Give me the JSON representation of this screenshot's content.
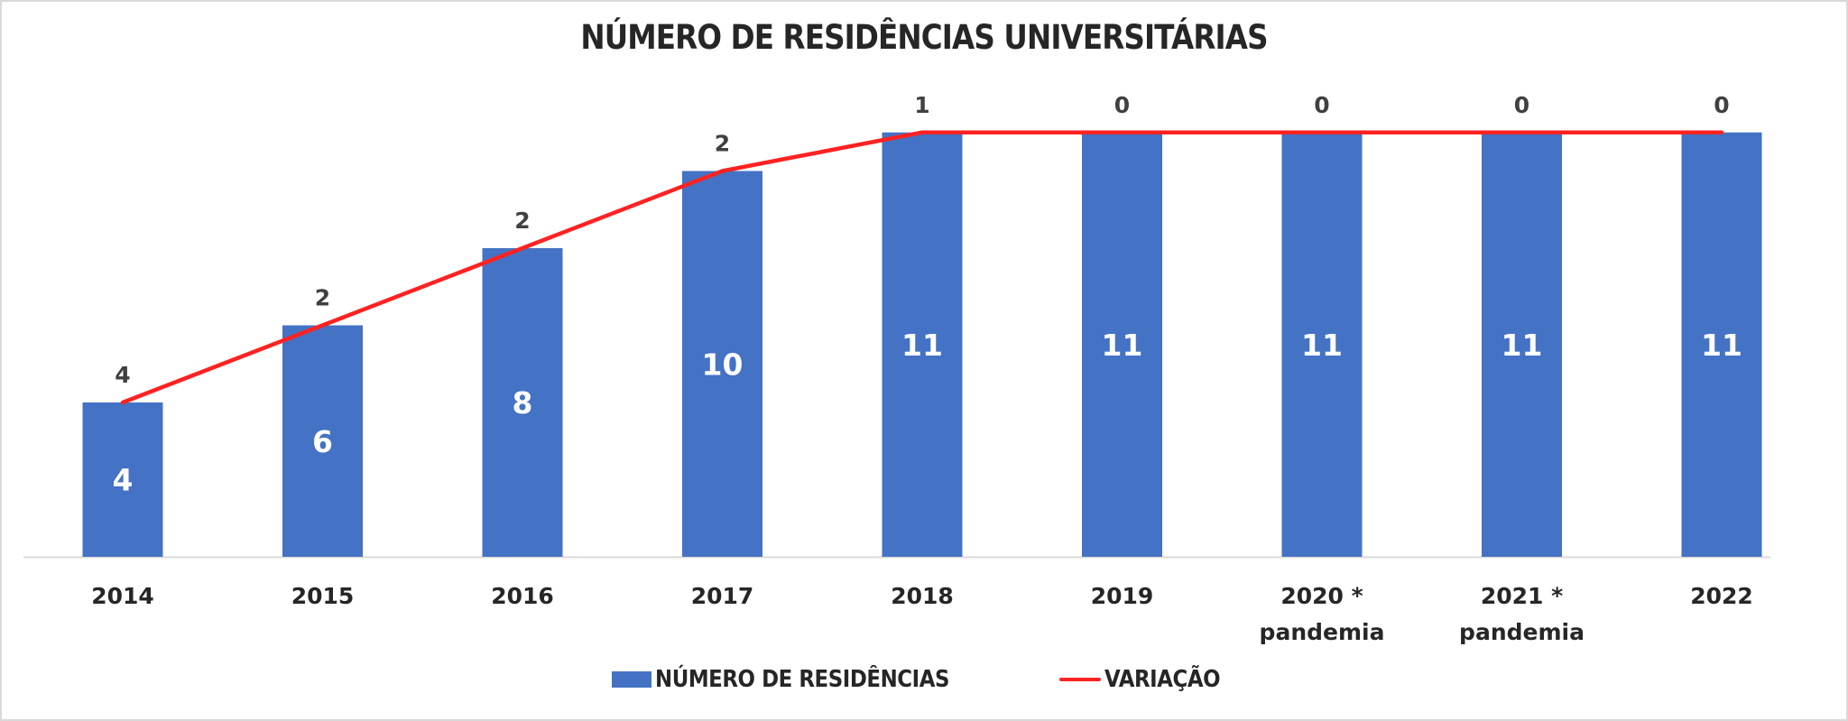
{
  "chart_data": {
    "type": "bar",
    "title": "NÚMERO DE RESIDÊNCIAS UNIVERSITÁRIAS",
    "categories": [
      [
        "2014"
      ],
      [
        "2015"
      ],
      [
        "2016"
      ],
      [
        "2017"
      ],
      [
        "2018"
      ],
      [
        "2019"
      ],
      [
        "2020 *",
        "pandemia"
      ],
      [
        "2021 *",
        "pandemia"
      ],
      [
        "2022"
      ]
    ],
    "series": [
      {
        "name": "NÚMERO DE RESIDÊNCIAS",
        "type": "bar",
        "color": "#4472c4",
        "values": [
          4,
          6,
          8,
          10,
          11,
          11,
          11,
          11,
          11
        ]
      },
      {
        "name": "VARIAÇÃO",
        "type": "line",
        "color": "#ff2222",
        "values": [
          4,
          2,
          2,
          2,
          1,
          0,
          0,
          0,
          0
        ]
      }
    ],
    "xlabel": "",
    "ylabel": "",
    "ylim": [
      0,
      11
    ],
    "grid": false,
    "legend_position": "bottom"
  }
}
